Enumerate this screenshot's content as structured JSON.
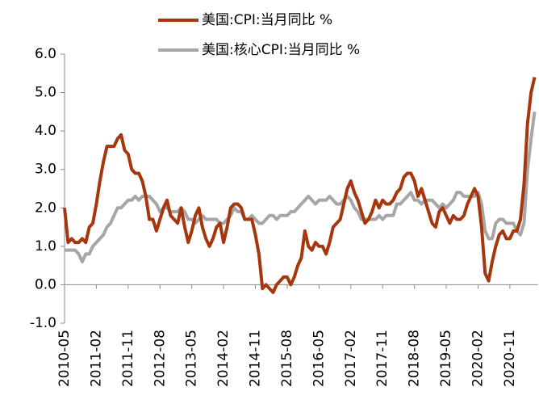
{
  "chart_data": {
    "type": "line",
    "categories": [
      "2010-05",
      null,
      null,
      null,
      null,
      null,
      null,
      null,
      null,
      "2011-02",
      null,
      null,
      null,
      null,
      null,
      null,
      null,
      null,
      "2011-11",
      null,
      null,
      null,
      null,
      null,
      null,
      null,
      null,
      "2012-08",
      null,
      null,
      null,
      null,
      null,
      null,
      null,
      null,
      "2013-05",
      null,
      null,
      null,
      null,
      null,
      null,
      null,
      null,
      "2014-02",
      null,
      null,
      null,
      null,
      null,
      null,
      null,
      null,
      "2014-11",
      null,
      null,
      null,
      null,
      null,
      null,
      null,
      null,
      "2015-08",
      null,
      null,
      null,
      null,
      null,
      null,
      null,
      null,
      "2016-05",
      null,
      null,
      null,
      null,
      null,
      null,
      null,
      null,
      "2017-02",
      null,
      null,
      null,
      null,
      null,
      null,
      null,
      null,
      "2017-11",
      null,
      null,
      null,
      null,
      null,
      null,
      null,
      null,
      "2018-08",
      null,
      null,
      null,
      null,
      null,
      null,
      null,
      null,
      "2019-05",
      null,
      null,
      null,
      null,
      null,
      null,
      null,
      null,
      "2020-02",
      null,
      null,
      null,
      null,
      null,
      null,
      null,
      null,
      "2020-11",
      null,
      null,
      null,
      null,
      null,
      null,
      null
    ],
    "series": [
      {
        "name": "美国:CPI:当月同比 %",
        "color": "#a5360d",
        "values": [
          2.0,
          1.1,
          1.2,
          1.1,
          1.1,
          1.2,
          1.1,
          1.5,
          1.6,
          2.1,
          2.7,
          3.2,
          3.6,
          3.6,
          3.6,
          3.8,
          3.9,
          3.5,
          3.4,
          3.0,
          2.9,
          2.9,
          2.7,
          2.3,
          1.7,
          1.7,
          1.4,
          1.7,
          2.0,
          2.2,
          1.8,
          1.7,
          1.6,
          2.0,
          1.5,
          1.1,
          1.4,
          1.8,
          2.0,
          1.5,
          1.2,
          1.0,
          1.2,
          1.5,
          1.6,
          1.1,
          1.5,
          2.0,
          2.1,
          2.1,
          2.0,
          1.7,
          1.7,
          1.7,
          1.3,
          0.8,
          -0.1,
          0.0,
          -0.1,
          -0.2,
          0.0,
          0.1,
          0.2,
          0.2,
          0.0,
          0.2,
          0.5,
          0.7,
          1.4,
          1.0,
          0.9,
          1.1,
          1.0,
          1.0,
          0.8,
          1.1,
          1.5,
          1.6,
          1.7,
          2.1,
          2.5,
          2.7,
          2.4,
          2.2,
          1.9,
          1.6,
          1.7,
          1.9,
          2.2,
          2.0,
          2.2,
          2.1,
          2.1,
          2.2,
          2.4,
          2.5,
          2.8,
          2.9,
          2.9,
          2.7,
          2.3,
          2.5,
          2.2,
          1.9,
          1.6,
          1.5,
          1.9,
          2.0,
          1.8,
          1.6,
          1.8,
          1.7,
          1.7,
          1.8,
          2.1,
          2.3,
          2.5,
          2.3,
          1.5,
          0.3,
          0.1,
          0.6,
          1.0,
          1.3,
          1.4,
          1.2,
          1.2,
          1.4,
          1.4,
          1.7,
          2.6,
          4.2,
          5.0,
          5.4
        ]
      },
      {
        "name": "美国:核心CPI:当月同比 %",
        "color": "#a6a6a6",
        "values": [
          0.9,
          0.9,
          0.9,
          0.9,
          0.8,
          0.6,
          0.8,
          0.8,
          1.0,
          1.1,
          1.2,
          1.3,
          1.5,
          1.6,
          1.8,
          2.0,
          2.0,
          2.1,
          2.2,
          2.2,
          2.3,
          2.2,
          2.3,
          2.3,
          2.3,
          2.2,
          2.1,
          1.9,
          2.0,
          2.0,
          1.9,
          1.9,
          1.9,
          2.0,
          1.9,
          1.7,
          1.7,
          1.6,
          1.7,
          1.8,
          1.7,
          1.7,
          1.7,
          1.7,
          1.6,
          1.6,
          1.7,
          1.8,
          2.0,
          1.9,
          1.9,
          1.7,
          1.7,
          1.8,
          1.7,
          1.6,
          1.6,
          1.7,
          1.8,
          1.8,
          1.7,
          1.8,
          1.8,
          1.8,
          1.9,
          1.9,
          2.0,
          2.1,
          2.2,
          2.3,
          2.2,
          2.1,
          2.2,
          2.2,
          2.2,
          2.3,
          2.2,
          2.1,
          2.1,
          2.2,
          2.3,
          2.2,
          2.0,
          1.9,
          1.7,
          1.7,
          1.7,
          1.7,
          1.7,
          1.8,
          1.7,
          1.8,
          1.8,
          1.8,
          2.1,
          2.1,
          2.2,
          2.3,
          2.4,
          2.2,
          2.2,
          2.1,
          2.2,
          2.2,
          2.2,
          2.1,
          2.0,
          2.1,
          2.0,
          2.1,
          2.2,
          2.4,
          2.4,
          2.3,
          2.3,
          2.3,
          2.3,
          2.4,
          2.1,
          1.4,
          1.2,
          1.2,
          1.6,
          1.7,
          1.7,
          1.6,
          1.6,
          1.6,
          1.4,
          1.3,
          1.6,
          3.0,
          3.8,
          4.5
        ]
      }
    ],
    "ylim": [
      -1,
      6
    ],
    "yticks": [
      {
        "value": -1,
        "label": "-1.0"
      },
      {
        "value": 0,
        "label": "0.0"
      },
      {
        "value": 1,
        "label": "1.0"
      },
      {
        "value": 2,
        "label": "2.0"
      },
      {
        "value": 3,
        "label": "3.0"
      },
      {
        "value": 4,
        "label": "4.0"
      },
      {
        "value": 5,
        "label": "5.0"
      },
      {
        "value": 6,
        "label": "6.0"
      }
    ],
    "grid": false
  }
}
